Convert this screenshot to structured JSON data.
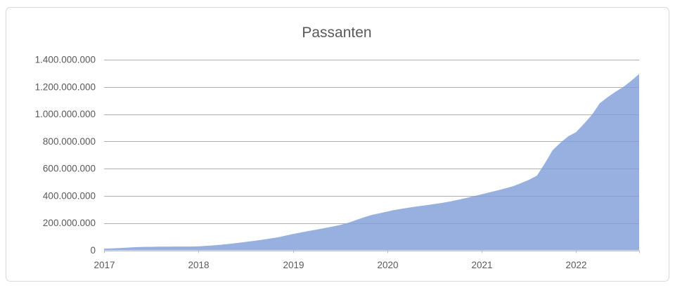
{
  "chart": {
    "title": "Passanten",
    "colors": {
      "series_fill": "#7E9CD8",
      "gridline": "#AFAFAF",
      "axis_line": "#BFBFBF",
      "text": "#595959",
      "frame_border": "#D9D9D9",
      "background": "#FFFFFF"
    }
  },
  "chart_data": {
    "type": "area",
    "title": "Passanten",
    "legend": "none",
    "grid": "horizontal",
    "ylim": [
      0,
      1400000000
    ],
    "ytick_interval": 200000000,
    "ytick_labels": [
      "0",
      "200.000.000",
      "400.000.000",
      "600.000.000",
      "800.000.000",
      "1.000.000.000",
      "1.200.000.000",
      "1.400.000.000"
    ],
    "xtick_labels": [
      "2017",
      "2018",
      "2019",
      "2020",
      "2021",
      "2022"
    ],
    "x": [
      "2017-01",
      "2017-02",
      "2017-03",
      "2017-04",
      "2017-05",
      "2017-06",
      "2017-07",
      "2017-08",
      "2017-09",
      "2017-10",
      "2017-11",
      "2017-12",
      "2018-01",
      "2018-02",
      "2018-03",
      "2018-04",
      "2018-05",
      "2018-06",
      "2018-07",
      "2018-08",
      "2018-09",
      "2018-10",
      "2018-11",
      "2018-12",
      "2019-01",
      "2019-02",
      "2019-03",
      "2019-04",
      "2019-05",
      "2019-06",
      "2019-07",
      "2019-08",
      "2019-09",
      "2019-10",
      "2019-11",
      "2019-12",
      "2020-01",
      "2020-02",
      "2020-03",
      "2020-04",
      "2020-05",
      "2020-06",
      "2020-07",
      "2020-08",
      "2020-09",
      "2020-10",
      "2020-11",
      "2020-12",
      "2021-01",
      "2021-02",
      "2021-03",
      "2021-04",
      "2021-05",
      "2021-06",
      "2021-07",
      "2021-08",
      "2021-09",
      "2021-10",
      "2021-11",
      "2021-12",
      "2022-01",
      "2022-02",
      "2022-03",
      "2022-04",
      "2022-05",
      "2022-06",
      "2022-07",
      "2022-08",
      "2022-09"
    ],
    "values": [
      12000000,
      14000000,
      17000000,
      20000000,
      23000000,
      25000000,
      26000000,
      27000000,
      27000000,
      28000000,
      28000000,
      28000000,
      29000000,
      33000000,
      37000000,
      42000000,
      48000000,
      55000000,
      62000000,
      69000000,
      77000000,
      86000000,
      95000000,
      107000000,
      120000000,
      131000000,
      142000000,
      152000000,
      163000000,
      174000000,
      186000000,
      202000000,
      222000000,
      242000000,
      260000000,
      272000000,
      285000000,
      297000000,
      307000000,
      316000000,
      324000000,
      332000000,
      340000000,
      349000000,
      359000000,
      371000000,
      384000000,
      398000000,
      412000000,
      426000000,
      440000000,
      455000000,
      471000000,
      494000000,
      518000000,
      548000000,
      637000000,
      735000000,
      790000000,
      838000000,
      868000000,
      930000000,
      995000000,
      1080000000,
      1125000000,
      1165000000,
      1200000000,
      1245000000,
      1295000000
    ]
  }
}
